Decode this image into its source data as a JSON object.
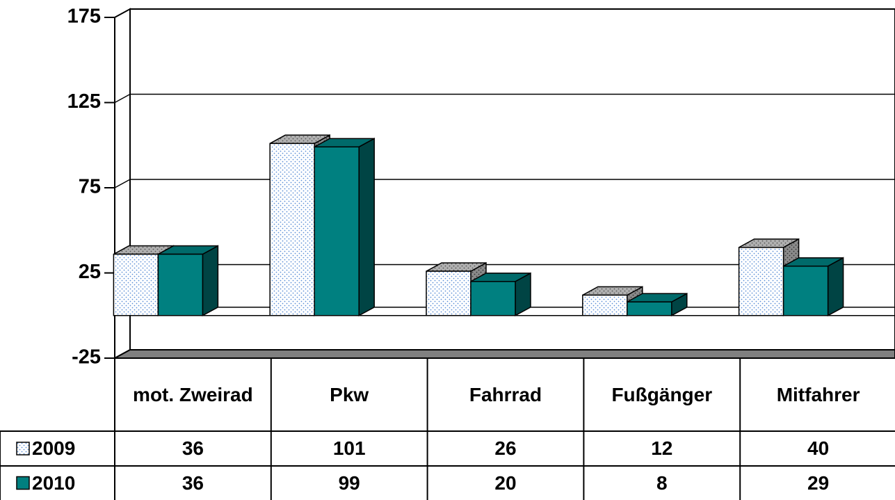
{
  "chart_data": {
    "type": "bar3d",
    "categories": [
      "mot. Zweirad",
      "Pkw",
      "Fahrrad",
      "Fußgänger",
      "Mitfahrer"
    ],
    "series": [
      {
        "name": "2009",
        "color": "#ffffff",
        "values": [
          36,
          101,
          26,
          12,
          40
        ]
      },
      {
        "name": "2010",
        "color": "#008080",
        "values": [
          36,
          99,
          20,
          8,
          29
        ]
      }
    ],
    "ylim": [
      -25,
      175
    ],
    "yticks": [
      -25,
      25,
      75,
      125,
      175
    ],
    "grid": true
  }
}
